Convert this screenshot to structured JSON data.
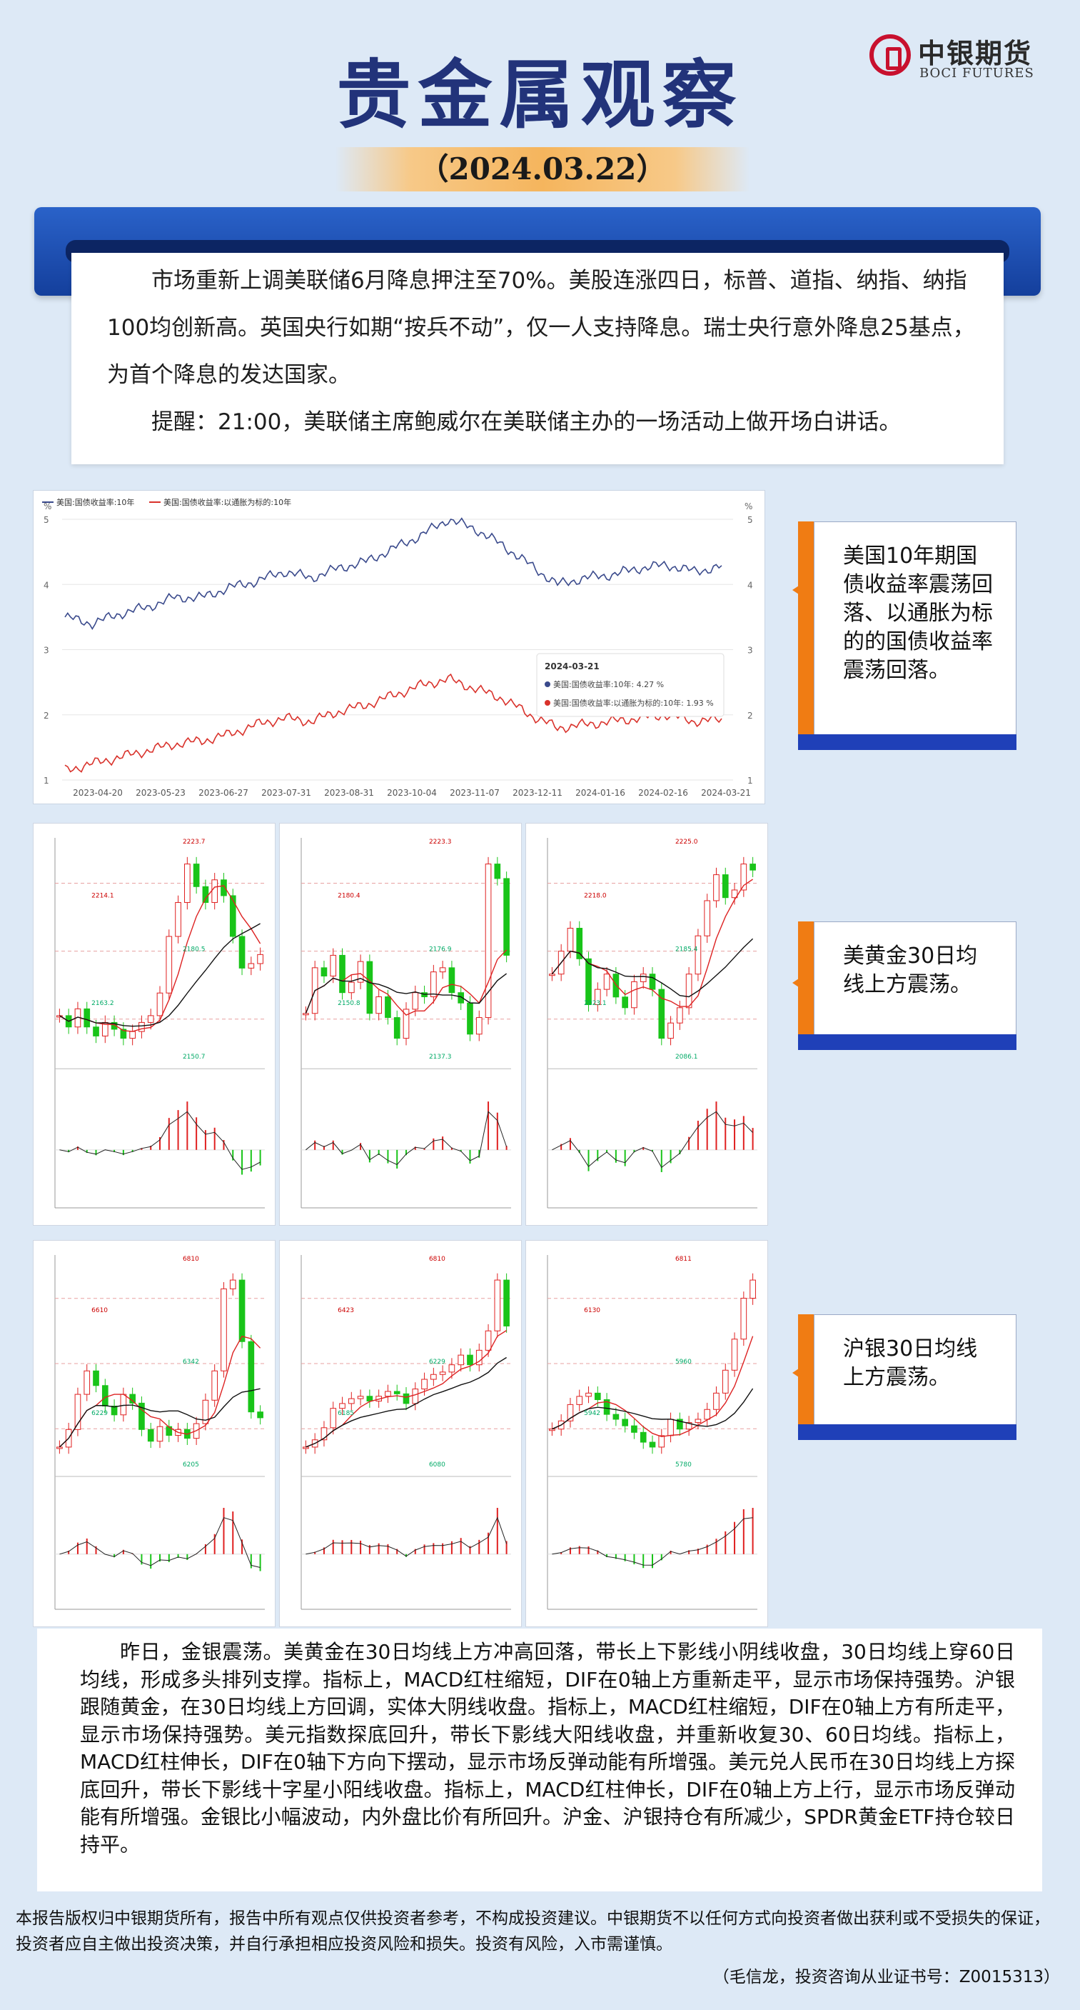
{
  "header": {
    "title": "贵金属观察",
    "date": "（2024.03.22）",
    "logo_cn": "中银期货",
    "logo_en": "BOCI FUTURES"
  },
  "summary": {
    "paragraphs": [
      "市场重新上调美联储6月降息押注至70%。美股连涨四日，标普、道指、纳指、纳指100均创新高。英国央行如期“按兵不动”，仅一人支持降息。瑞士央行意外降息25基点，为首个降息的发达国家。",
      "提醒：21:00，美联储主席鲍威尔在美联储主办的一场活动上做开场白讲话。"
    ]
  },
  "yield_chart": {
    "chart_data": {
      "type": "line",
      "legend_position": "top-left",
      "unit": "%",
      "y_range": [
        1,
        5
      ],
      "y_ticks": [
        1,
        2,
        3,
        4,
        5
      ],
      "x_tick_labels": [
        "2023-04-20",
        "2023-05-23",
        "2023-06-27",
        "2023-07-31",
        "2023-08-31",
        "2023-10-04",
        "2023-11-07",
        "2023-12-11",
        "2024-01-16",
        "2024-02-16",
        "2024-03-21"
      ],
      "series": [
        {
          "name": "美国:国债收益率:10年",
          "color": "#3a4a8c",
          "values": [
            3.5,
            3.4,
            3.55,
            3.65,
            3.8,
            3.8,
            3.95,
            4.05,
            4.2,
            4.1,
            4.25,
            4.35,
            4.55,
            4.75,
            5.0,
            4.85,
            4.6,
            4.3,
            4.0,
            4.1,
            4.15,
            4.25,
            4.3,
            4.2,
            4.27
          ]
        },
        {
          "name": "美国:国债收益率:以通胀为标的:10年",
          "color": "#d9322b",
          "values": [
            1.15,
            1.25,
            1.35,
            1.45,
            1.55,
            1.6,
            1.7,
            1.85,
            1.95,
            1.9,
            2.05,
            2.15,
            2.3,
            2.45,
            2.55,
            2.4,
            2.25,
            2.0,
            1.8,
            1.85,
            1.9,
            1.95,
            2.0,
            1.9,
            1.93
          ]
        }
      ],
      "tooltip": {
        "date": "2024-03-21",
        "rows": [
          {
            "label": "美国:国债收益率:10年:",
            "value": "4.27 %"
          },
          {
            "label": "美国:国债收益率:以通胀为标的:10年:",
            "value": "1.93 %"
          }
        ]
      }
    }
  },
  "gold_charts": {
    "panels": [
      {
        "labels": [
          "2223.7",
          "2214.1",
          "2180.5",
          "2163.2",
          "2150.7"
        ],
        "closes": [
          2155,
          2150,
          2158,
          2150,
          2146,
          2152,
          2149,
          2145,
          2148,
          2152,
          2155,
          2165,
          2190,
          2205,
          2222,
          2212,
          2205,
          2215,
          2208,
          2190,
          2176,
          2178,
          2182
        ]
      },
      {
        "labels": [
          "2223.3",
          "2180.4",
          "2176.9",
          "2150.8",
          "2137.3"
        ],
        "closes": [
          2150,
          2172,
          2168,
          2178,
          2160,
          2165,
          2175,
          2150,
          2158,
          2148,
          2138,
          2152,
          2160,
          2158,
          2170,
          2172,
          2160,
          2155,
          2140,
          2148,
          2222,
          2215,
          2178
        ]
      },
      {
        "labels": [
          "2225.0",
          "2218.0",
          "2185.4",
          "2023.1",
          "2086.1"
        ],
        "closes": [
          2150,
          2165,
          2180,
          2160,
          2130,
          2140,
          2150,
          2135,
          2128,
          2145,
          2150,
          2140,
          2108,
          2118,
          2128,
          2150,
          2175,
          2198,
          2215,
          2200,
          2205,
          2222,
          2218
        ]
      }
    ]
  },
  "silver_charts": {
    "panels": [
      {
        "labels": [
          "6810",
          "6610",
          "6342",
          "6229",
          "6205"
        ],
        "closes": [
          6240,
          6300,
          6420,
          6500,
          6450,
          6380,
          6350,
          6420,
          6390,
          6300,
          6260,
          6310,
          6280,
          6300,
          6270,
          6320,
          6400,
          6500,
          6780,
          6810,
          6600,
          6360,
          6340
        ]
      },
      {
        "labels": [
          "6810",
          "6423",
          "6229",
          "6185",
          "6080"
        ],
        "closes": [
          6120,
          6150,
          6200,
          6280,
          6300,
          6320,
          6330,
          6310,
          6330,
          6350,
          6340,
          6300,
          6360,
          6400,
          6420,
          6430,
          6460,
          6500,
          6460,
          6520,
          6600,
          6810,
          6620
        ]
      },
      {
        "labels": [
          "6811",
          "6130",
          "5960",
          "5942",
          "5780"
        ],
        "closes": [
          5900,
          5950,
          6050,
          6100,
          6120,
          6080,
          5990,
          5960,
          5920,
          5880,
          5820,
          5790,
          5860,
          5960,
          5900,
          5940,
          5960,
          6020,
          6120,
          6260,
          6450,
          6700,
          6811
        ]
      }
    ]
  },
  "callouts": {
    "yield": "美国10年期国债收益率震荡回落、以通胀为标的的国债收益率震荡回落。",
    "gold": "美黄金30日均线上方震荡。",
    "silver": "沪银30日均线上方震荡。"
  },
  "analysis": {
    "text": "昨日，金银震荡。美黄金在30日均线上方冲高回落，带长上下影线小阴线收盘，30日均线上穿60日均线，形成多头排列支撑。指标上，MACD红柱缩短，DIF在0轴上方重新走平，显示市场保持强势。沪银跟随黄金，在30日均线上方回调，实体大阴线收盘。指标上，MACD红柱缩短，DIF在0轴上方有所走平，显示市场保持强势。美元指数探底回升，带长下影线大阳线收盘，并重新收复30、60日均线。指标上，MACD红柱伸长，DIF在0轴下方向下摆动，显示市场反弹动能有所增强。美元兑人民币在30日均线上方探底回升，带长下影线十字星小阳线收盘。指标上，MACD红柱伸长，DIF在0轴上方上行，显示市场反弹动能有所增强。金银比小幅波动，内外盘比价有所回升。沪金、沪银持仓有所减少，SPDR黄金ETF持仓较日持平。"
  },
  "footer": {
    "disclaimer": "本报告版权归中银期货所有，报告中所有观点仅供投资者参考，不构成投资建议。中银期货不以任何方式向投资者做出获利或不受损失的保证，投资者应自主做出投资决策，并自行承担相应投资风险和损失。投资有风险，入市需谨慎。",
    "author": "（毛信龙，投资咨询从业证书号：Z0015313）"
  }
}
